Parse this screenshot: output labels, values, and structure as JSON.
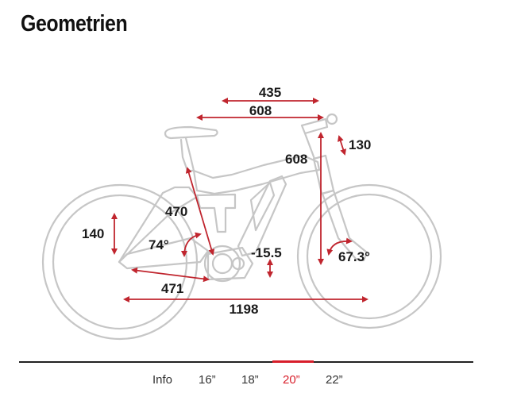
{
  "page": {
    "title": "Geometrien"
  },
  "dimensions": {
    "reach": "435",
    "top_tube": "608",
    "head_tube": "130",
    "stack": "608",
    "seat_tube": "470",
    "seat_angle": "74°",
    "head_angle": "67.3°",
    "bb_drop": "-15.5",
    "bb_height": "140",
    "chainstay": "471",
    "wheelbase": "1198"
  },
  "tabs": [
    {
      "label": "Info",
      "active": false
    },
    {
      "label": "16”",
      "active": false
    },
    {
      "label": "18”",
      "active": false
    },
    {
      "label": "20”",
      "active": true
    },
    {
      "label": "22”",
      "active": false
    }
  ],
  "colors": {
    "accent": "#d81e2a",
    "frame": "#c6c6c6",
    "text": "#1a1a1a"
  },
  "icons": [
    "bike-geometry-icon"
  ]
}
